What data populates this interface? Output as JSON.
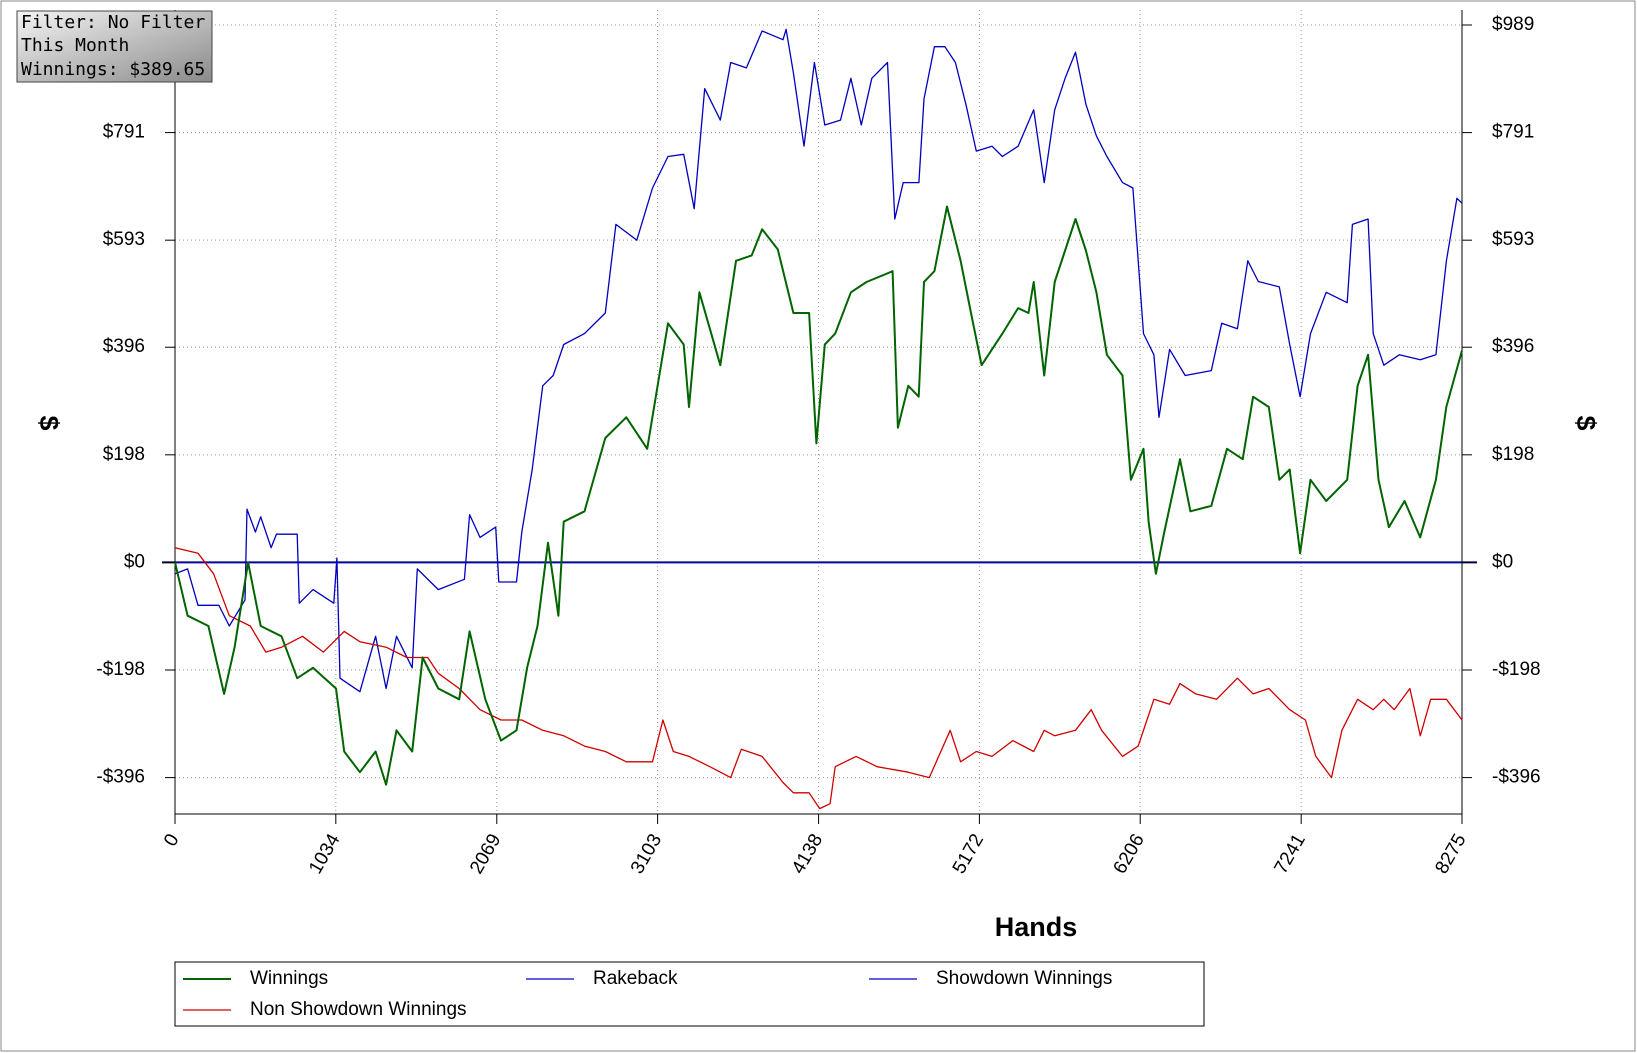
{
  "chart_data": {
    "type": "line",
    "annotations": [
      "Filter: No Filter",
      "This Month",
      "Winnings: $389.65"
    ],
    "xlabel": "Hands",
    "ylabel": "$",
    "y2label": "$",
    "xlim": [
      0,
      8275
    ],
    "xticks": [
      0,
      1034,
      2069,
      3103,
      4138,
      5172,
      6206,
      7241,
      8275
    ],
    "ylim": [
      -463,
      989
    ],
    "yticks": [
      {
        "value": -396,
        "label": "-$396"
      },
      {
        "value": -198,
        "label": "-$198"
      },
      {
        "value": 0,
        "label": "$0"
      },
      {
        "value": 198,
        "label": "$198"
      },
      {
        "value": 396,
        "label": "$396"
      },
      {
        "value": 593,
        "label": "$593"
      },
      {
        "value": 791,
        "label": "$791"
      },
      {
        "value": 989,
        "label": "$989"
      }
    ],
    "y2lim": [
      -463,
      989
    ],
    "y2ticks": [
      {
        "value": -396,
        "label": "-$396"
      },
      {
        "value": -198,
        "label": "-$198"
      },
      {
        "value": 0,
        "label": "$0"
      },
      {
        "value": 198,
        "label": "$198"
      },
      {
        "value": 396,
        "label": "$396"
      },
      {
        "value": 593,
        "label": "$593"
      },
      {
        "value": 791,
        "label": "$791"
      },
      {
        "value": 989,
        "label": "$989"
      }
    ],
    "grid": true,
    "legend": "bottom",
    "series": [
      {
        "name": "Winnings",
        "color": "#006400",
        "x": [
          0,
          81,
          215,
          316,
          383,
          470,
          551,
          685,
          786,
          887,
          1035,
          1088,
          1189,
          1290,
          1357,
          1424,
          1525,
          1592,
          1693,
          1827,
          1894,
          1995,
          2096,
          2196,
          2264,
          2331,
          2398,
          2465,
          2499,
          2633,
          2767,
          2902,
          3036,
          3103,
          3170,
          3271,
          3305,
          3372,
          3506,
          3607,
          3708,
          3775,
          3876,
          3976,
          4077,
          4124,
          4178,
          4245,
          4346,
          4446,
          4614,
          4648,
          4715,
          4782,
          4816,
          4883,
          4964,
          5051,
          5118,
          5186,
          5320,
          5421,
          5488,
          5521,
          5589,
          5656,
          5723,
          5790,
          5857,
          5924,
          5992,
          6092,
          6146,
          6227,
          6260,
          6307,
          6361,
          6462,
          6529,
          6663,
          6764,
          6865,
          6932,
          7033,
          7100,
          7167,
          7234,
          7301,
          7402,
          7537,
          7604,
          7671,
          7738,
          7805,
          7906,
          8006,
          8107,
          8174,
          8275
        ],
        "values": [
          0,
          -98,
          -117,
          -242,
          -156,
          0,
          -117,
          -136,
          -213,
          -194,
          -232,
          -348,
          -386,
          -348,
          -409,
          -309,
          -348,
          -175,
          -232,
          -252,
          -127,
          -252,
          -328,
          -309,
          -194,
          -117,
          36,
          -98,
          75,
          94,
          229,
          267,
          209,
          325,
          440,
          401,
          286,
          497,
          363,
          555,
          565,
          613,
          576,
          459,
          459,
          219,
          401,
          421,
          497,
          516,
          536,
          248,
          325,
          305,
          516,
          536,
          655,
          555,
          459,
          363,
          421,
          468,
          459,
          516,
          344,
          516,
          574,
          632,
          574,
          497,
          382,
          344,
          152,
          209,
          75,
          -21,
          56,
          190,
          94,
          104,
          209,
          190,
          305,
          286,
          152,
          171,
          17,
          152,
          113,
          152,
          325,
          382,
          152,
          65,
          113,
          46,
          152,
          286,
          390
        ]
      },
      {
        "name": "Rakeback",
        "color": "#0000c0",
        "x": [
          0,
          8275
        ],
        "values": [
          0,
          0
        ]
      },
      {
        "name": "Showdown Winnings",
        "color": "#0000c0",
        "x": [
          0,
          81,
          148,
          282,
          349,
          450,
          463,
          517,
          551,
          618,
          652,
          786,
          799,
          887,
          1021,
          1041,
          1061,
          1189,
          1290,
          1357,
          1424,
          1525,
          1558,
          1693,
          1861,
          1894,
          1961,
          2062,
          2082,
          2196,
          2230,
          2297,
          2364,
          2432,
          2499,
          2633,
          2767,
          2835,
          2969,
          3070,
          3170,
          3271,
          3338,
          3406,
          3506,
          3573,
          3674,
          3775,
          3909,
          3929,
          3976,
          4044,
          4111,
          4178,
          4279,
          4346,
          4413,
          4480,
          4581,
          4628,
          4682,
          4783,
          4816,
          4883,
          4950,
          5018,
          5085,
          5152,
          5253,
          5320,
          5421,
          5521,
          5589,
          5656,
          5723,
          5790,
          5857,
          5924,
          5992,
          6092,
          6159,
          6227,
          6294,
          6327,
          6395,
          6495,
          6663,
          6730,
          6831,
          6898,
          6965,
          7100,
          7167,
          7234,
          7301,
          7402,
          7537,
          7570,
          7671,
          7704,
          7772,
          7872,
          8007,
          8107,
          8175,
          8242,
          8275
        ],
        "values": [
          -21,
          -12,
          -79,
          -79,
          -117,
          -69,
          98,
          56,
          84,
          27,
          52,
          52,
          -75,
          -50,
          -75,
          8,
          -213,
          -238,
          -136,
          -232,
          -136,
          -194,
          -12,
          -50,
          -31,
          88,
          46,
          65,
          -36,
          -36,
          56,
          171,
          325,
          344,
          401,
          421,
          459,
          622,
          593,
          689,
          747,
          751,
          651,
          872,
          814,
          920,
          910,
          978,
          962,
          981,
          901,
          766,
          920,
          805,
          814,
          891,
          805,
          891,
          920,
          632,
          699,
          699,
          853,
          949,
          949,
          920,
          843,
          757,
          766,
          747,
          766,
          833,
          699,
          833,
          891,
          939,
          843,
          785,
          747,
          699,
          689,
          421,
          382,
          267,
          392,
          344,
          353,
          440,
          430,
          555,
          517,
          507,
          401,
          305,
          421,
          497,
          478,
          622,
          632,
          421,
          363,
          382,
          373,
          382,
          555,
          670,
          661
        ]
      },
      {
        "name": "Non Showdown Winnings",
        "color": "#d00000",
        "x": [
          0,
          148,
          248,
          349,
          484,
          584,
          685,
          820,
          954,
          1088,
          1189,
          1357,
          1491,
          1625,
          1693,
          1827,
          1961,
          2096,
          2230,
          2364,
          2499,
          2633,
          2767,
          2902,
          3070,
          3137,
          3204,
          3305,
          3439,
          3573,
          3641,
          3775,
          3909,
          3976,
          4077,
          4145,
          4212,
          4245,
          4379,
          4514,
          4715,
          4850,
          4984,
          5051,
          5152,
          5253,
          5387,
          5521,
          5589,
          5656,
          5790,
          5891,
          5958,
          6092,
          6193,
          6294,
          6395,
          6462,
          6563,
          6697,
          6831,
          6932,
          7033,
          7167,
          7268,
          7335,
          7436,
          7503,
          7604,
          7704,
          7772,
          7839,
          7940,
          8007,
          8074,
          8175,
          8275
        ],
        "values": [
          27,
          17,
          -21,
          -98,
          -117,
          -165,
          -156,
          -136,
          -165,
          -127,
          -146,
          -156,
          -175,
          -175,
          -204,
          -232,
          -271,
          -290,
          -290,
          -309,
          -319,
          -338,
          -348,
          -367,
          -367,
          -290,
          -348,
          -357,
          -376,
          -396,
          -344,
          -357,
          -405,
          -424,
          -424,
          -453,
          -444,
          -376,
          -357,
          -376,
          -386,
          -396,
          -309,
          -367,
          -348,
          -357,
          -328,
          -348,
          -309,
          -319,
          -309,
          -271,
          -309,
          -357,
          -338,
          -252,
          -261,
          -223,
          -242,
          -252,
          -213,
          -242,
          -232,
          -271,
          -290,
          -357,
          -396,
          -309,
          -252,
          -271,
          -252,
          -271,
          -232,
          -319,
          -252,
          -252,
          -290
        ]
      }
    ]
  }
}
